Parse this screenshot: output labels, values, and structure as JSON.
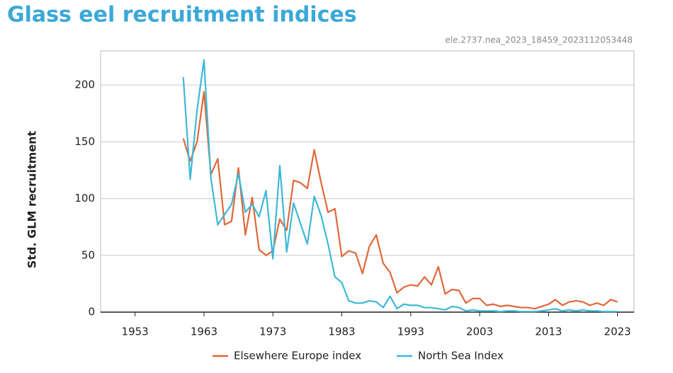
{
  "chart_data": {
    "type": "line",
    "title": "Glass eel recruitment indices",
    "subtitle": "ele.2737.nea_2023_18459_2023112053448",
    "ylabel": "Std. GLM recruitment",
    "x": [
      1960,
      1961,
      1962,
      1963,
      1964,
      1965,
      1966,
      1967,
      1968,
      1969,
      1970,
      1971,
      1972,
      1973,
      1974,
      1975,
      1976,
      1977,
      1978,
      1979,
      1980,
      1981,
      1982,
      1983,
      1984,
      1985,
      1986,
      1987,
      1988,
      1989,
      1990,
      1991,
      1992,
      1993,
      1994,
      1995,
      1996,
      1997,
      1998,
      1999,
      2000,
      2001,
      2002,
      2003,
      2004,
      2005,
      2006,
      2007,
      2008,
      2009,
      2010,
      2011,
      2012,
      2013,
      2014,
      2015,
      2016,
      2017,
      2018,
      2019,
      2020,
      2021,
      2022,
      2023
    ],
    "series": [
      {
        "name": "Elsewhere Europe index",
        "color": "#e0673a",
        "values": [
          153,
          133,
          150,
          194,
          121,
          135,
          77,
          80,
          127,
          68,
          101,
          55,
          50,
          54,
          82,
          72,
          116,
          114,
          109,
          143,
          114,
          88,
          91,
          49,
          54,
          52,
          34,
          58,
          68,
          43,
          35,
          17,
          22,
          24,
          23,
          31,
          24,
          40,
          16,
          20,
          19,
          8,
          12,
          12,
          6,
          7,
          5,
          6,
          5,
          4,
          4,
          3,
          5,
          7,
          11,
          6,
          9,
          10,
          9,
          6,
          8,
          6,
          11,
          9
        ]
      },
      {
        "name": "North Sea Index",
        "color": "#3db8d6",
        "values": [
          207,
          117,
          178,
          222,
          118,
          77,
          86,
          95,
          122,
          88,
          95,
          84,
          107,
          47,
          129,
          53,
          96,
          78,
          60,
          102,
          85,
          60,
          31,
          26,
          10,
          8,
          8,
          10,
          9,
          4,
          14,
          3,
          7,
          6,
          6,
          4,
          4,
          3,
          2,
          5,
          4,
          1,
          2,
          1,
          1,
          1,
          0.5,
          1,
          1,
          0.5,
          0.5,
          0.5,
          1,
          2,
          3,
          1,
          2,
          1,
          2,
          1,
          1,
          0.5,
          0.5,
          0.5
        ]
      }
    ],
    "xlim": [
      1948,
      2025.4
    ],
    "xticks": [
      1953,
      1963,
      1973,
      1983,
      1993,
      2003,
      2013,
      2023
    ],
    "ylim": [
      0,
      230
    ],
    "yticks": [
      0,
      50,
      100,
      150,
      200
    ],
    "grid": true,
    "legend": "bottom"
  }
}
